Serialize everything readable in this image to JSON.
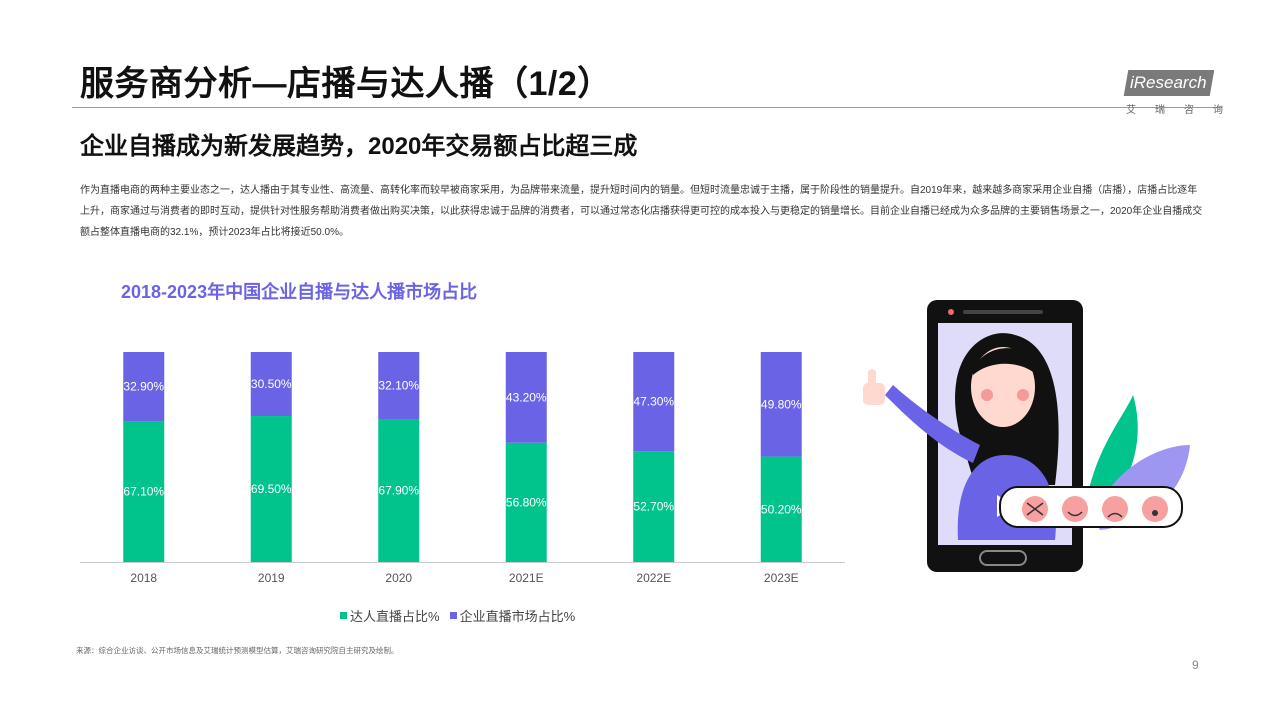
{
  "header": {
    "title": "服务商分析—店播与达人播（1/2）",
    "subtitle": "企业自播成为新发展趋势，2020年交易额占比超三成",
    "logo_text": "iResearch",
    "logo_cn": "艾瑞咨询"
  },
  "description": "作为直播电商的两种主要业态之一，达人播由于其专业性、高流量、高转化率而较早被商家采用，为品牌带来流量，提升短时间内的销量。但短时流量忠诚于主播，属于阶段性的销量提升。自2019年来，越来越多商家采用企业自播（店播），店播占比逐年上升，商家通过与消费者的即时互动，提供针对性服务帮助消费者做出购买决策，以此获得忠诚于品牌的消费者，可以通过常态化店播获得更可控的成本投入与更稳定的销量增长。目前企业自播已经成为众多品牌的主要销售场景之一，2020年企业自播成交额占整体直播电商的32.1%，预计2023年占比将接近50.0%。",
  "chart_data": {
    "type": "bar",
    "stacked": true,
    "title": "2018-2023年中国企业自播与达人播市场占比",
    "categories": [
      "2018",
      "2019",
      "2020",
      "2021E",
      "2022E",
      "2023E"
    ],
    "series": [
      {
        "name": "达人直播占比%",
        "color": "#00c48c",
        "values": [
          67.1,
          69.5,
          67.9,
          56.8,
          52.7,
          50.2
        ],
        "labels": [
          "67.10%",
          "69.50%",
          "67.90%",
          "56.80%",
          "52.70%",
          "50.20%"
        ]
      },
      {
        "name": "企业直播市场占比%",
        "color": "#6b63e6",
        "values": [
          32.9,
          30.5,
          32.1,
          43.2,
          47.3,
          49.8
        ],
        "labels": [
          "32.90%",
          "30.50%",
          "32.10%",
          "43.20%",
          "47.30%",
          "49.80%"
        ]
      }
    ],
    "ylim": [
      0,
      100
    ],
    "legend": "bottom",
    "grid": false
  },
  "footer": {
    "source": "来源：综合企业访谈、公开市场信息及艾瑞统计预测模型估算，艾瑞咨询研究院自主研究及绘制。",
    "page": "9"
  }
}
